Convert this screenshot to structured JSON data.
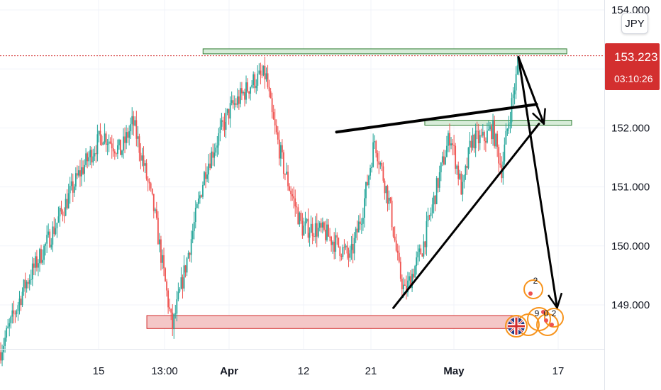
{
  "symbol": {
    "currency": "JPY"
  },
  "last_price": {
    "price": "153.223",
    "countdown": "03:10:26",
    "color": "#d32f2f"
  },
  "colors": {
    "up": "#26a69a",
    "down": "#ef5350",
    "support_fill": "#f4c7c7",
    "support_stroke": "#d32f2f",
    "resistance_fill": "#d7ecd9",
    "resistance_stroke": "#2e7d32",
    "drawing": "#000000",
    "event_icon": "#f7941d"
  },
  "chart_data": {
    "type": "candlestick",
    "y_axis": {
      "min": 148.05,
      "max": 154.1,
      "ticks": [
        "154.000",
        "153.000",
        "152.000",
        "151.000",
        "150.000",
        "149.000"
      ],
      "position": "right"
    },
    "x_axis": {
      "ticks": [
        {
          "label": "15",
          "bold": false
        },
        {
          "label": "13:00",
          "bold": false
        },
        {
          "label": "Apr",
          "bold": true
        },
        {
          "label": "12",
          "bold": false
        },
        {
          "label": "21",
          "bold": false
        },
        {
          "label": "May",
          "bold": true
        },
        {
          "label": "17",
          "bold": false
        }
      ]
    },
    "grid": true,
    "trend_path": [
      {
        "t": 0,
        "p": 148.2
      },
      {
        "t": 0.04,
        "p": 149.3
      },
      {
        "t": 0.09,
        "p": 150.3
      },
      {
        "t": 0.13,
        "p": 151.2
      },
      {
        "t": 0.17,
        "p": 151.9
      },
      {
        "t": 0.2,
        "p": 151.6
      },
      {
        "t": 0.22,
        "p": 152.1
      },
      {
        "t": 0.235,
        "p": 151.5
      },
      {
        "t": 0.255,
        "p": 150.6
      },
      {
        "t": 0.285,
        "p": 148.6
      },
      {
        "t": 0.31,
        "p": 149.8
      },
      {
        "t": 0.34,
        "p": 151.3
      },
      {
        "t": 0.38,
        "p": 152.3
      },
      {
        "t": 0.42,
        "p": 152.8
      },
      {
        "t": 0.44,
        "p": 152.9
      },
      {
        "t": 0.45,
        "p": 152.2
      },
      {
        "t": 0.47,
        "p": 151.3
      },
      {
        "t": 0.5,
        "p": 150.3
      },
      {
        "t": 0.52,
        "p": 150.3
      },
      {
        "t": 0.54,
        "p": 150.2
      },
      {
        "t": 0.56,
        "p": 150.0
      },
      {
        "t": 0.58,
        "p": 149.8
      },
      {
        "t": 0.6,
        "p": 150.6
      },
      {
        "t": 0.62,
        "p": 151.8
      },
      {
        "t": 0.645,
        "p": 150.7
      },
      {
        "t": 0.66,
        "p": 149.6
      },
      {
        "t": 0.67,
        "p": 149.2
      },
      {
        "t": 0.7,
        "p": 150.0
      },
      {
        "t": 0.73,
        "p": 151.3
      },
      {
        "t": 0.745,
        "p": 151.9
      },
      {
        "t": 0.765,
        "p": 150.9
      },
      {
        "t": 0.78,
        "p": 151.8
      },
      {
        "t": 0.8,
        "p": 151.8
      },
      {
        "t": 0.815,
        "p": 152.0
      },
      {
        "t": 0.83,
        "p": 151.3
      },
      {
        "t": 0.84,
        "p": 152.0
      },
      {
        "t": 0.855,
        "p": 152.9
      },
      {
        "t": 0.86,
        "p": 153.22
      }
    ],
    "zones": [
      {
        "kind": "support",
        "from_t": 0.243,
        "to_t": 0.858,
        "top": 148.82,
        "bottom": 148.6
      },
      {
        "kind": "resistance",
        "from_t": 0.336,
        "to_t": 0.938,
        "top": 153.34,
        "bottom": 153.26
      },
      {
        "kind": "resistance",
        "from_t": 0.703,
        "to_t": 0.946,
        "top": 152.13,
        "bottom": 152.05
      }
    ],
    "drawings": [
      {
        "from": {
          "t": 0.557,
          "p": 151.93
        },
        "to": {
          "t": 0.888,
          "p": 152.4
        }
      },
      {
        "from": {
          "t": 0.651,
          "p": 148.95
        },
        "to": {
          "t": 0.892,
          "p": 152.07
        }
      },
      {
        "from": {
          "t": 0.858,
          "p": 153.2
        },
        "to": {
          "t": 0.9,
          "p": 152.07
        }
      },
      {
        "from": {
          "t": 0.858,
          "p": 153.2
        },
        "to": {
          "t": 0.922,
          "p": 148.95
        }
      }
    ]
  },
  "events": [
    {
      "label": "2",
      "icon": "event-bubble-icon"
    },
    {
      "label": "9",
      "icon": "event-bubble-icon"
    },
    {
      "label": "0",
      "icon": "event-bubble-icon"
    },
    {
      "label": "2",
      "icon": "event-bubble-icon"
    },
    {
      "label": "",
      "icon": "uk-flag-icon"
    }
  ]
}
